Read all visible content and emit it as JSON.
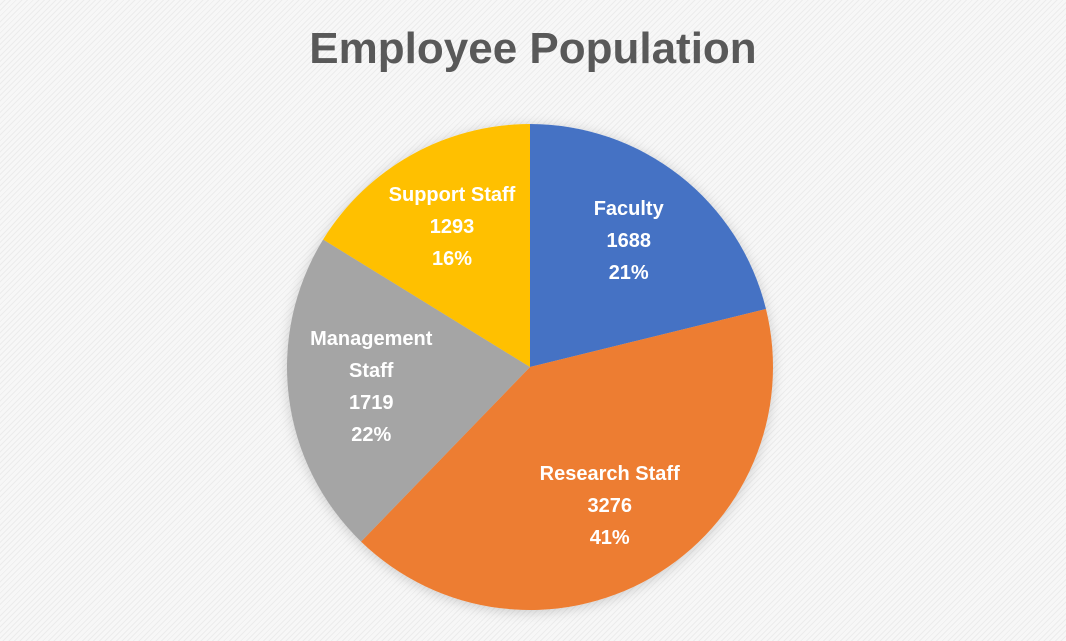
{
  "chart_data": {
    "type": "pie",
    "title": "Employee Population",
    "categories": [
      "Faculty",
      "Research Staff",
      "Management Staff",
      "Support Staff"
    ],
    "values": [
      1688,
      3276,
      1719,
      1293
    ],
    "percentages": [
      {
        "value": 21,
        "label": "21%"
      },
      {
        "value": 41,
        "label": "41%"
      },
      {
        "value": 22,
        "label": "22%"
      },
      {
        "value": 16,
        "label": "16%"
      }
    ],
    "colors": [
      "#4472c4",
      "#ed7d31",
      "#a5a5a5",
      "#ffc000"
    ]
  }
}
